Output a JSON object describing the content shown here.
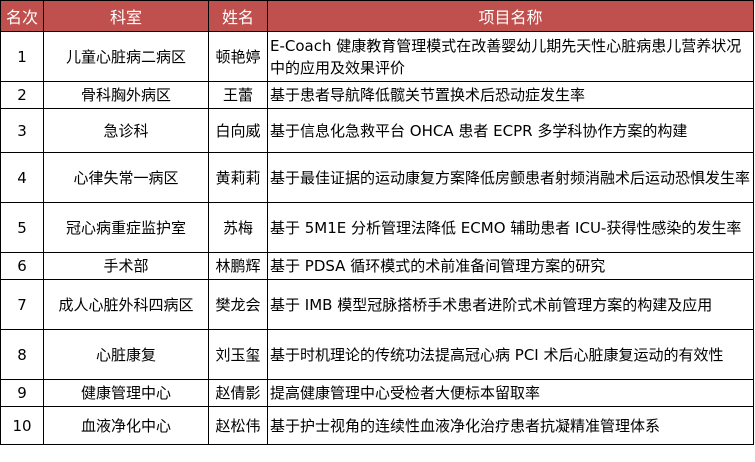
{
  "header": {
    "rank": "名次",
    "dept": "科室",
    "name": "姓名",
    "project": "项目名称"
  },
  "rows": [
    {
      "rank": "1",
      "dept": "儿童心脏病二病区",
      "name": "顿艳婷",
      "project": "E-Coach 健康教育管理模式在改善婴幼儿期先天性心脏病患儿营养状况中的应用及效果评价"
    },
    {
      "rank": "2",
      "dept": "骨科胸外病区",
      "name": "王蕾",
      "project": "基于患者导航降低髋关节置换术后恐动症发生率"
    },
    {
      "rank": "3",
      "dept": "急诊科",
      "name": "白向威",
      "project": "基于信息化急救平台 OHCA 患者 ECPR 多学科协作方案的构建"
    },
    {
      "rank": "4",
      "dept": "心律失常一病区",
      "name": "黄莉莉",
      "project": "基于最佳证据的运动康复方案降低房颤患者射频消融术后运动恐惧发生率"
    },
    {
      "rank": "5",
      "dept": "冠心病重症监护室",
      "name": "苏梅",
      "project": "基于 5M1E 分析管理法降低 ECMO 辅助患者 ICU-获得性感染的发生率"
    },
    {
      "rank": "6",
      "dept": "手术部",
      "name": "林鹏辉",
      "project": "基于 PDSA 循环模式的术前准备间管理方案的研究"
    },
    {
      "rank": "7",
      "dept": "成人心脏外科四病区",
      "name": "樊龙会",
      "project": "基于 IMB 模型冠脉搭桥手术患者进阶式术前管理方案的构建及应用"
    },
    {
      "rank": "8",
      "dept": "心脏康复",
      "name": "刘玉玺",
      "project": "基于时机理论的传统功法提高冠心病 PCI 术后心脏康复运动的有效性"
    },
    {
      "rank": "9",
      "dept": "健康管理中心",
      "name": "赵倩影",
      "project": "提高健康管理中心受检者大便标本留取率"
    },
    {
      "rank": "10",
      "dept": "血液净化中心",
      "name": "赵松伟",
      "project": "基于护士视角的连续性血液净化治疗患者抗凝精准管理体系"
    }
  ]
}
